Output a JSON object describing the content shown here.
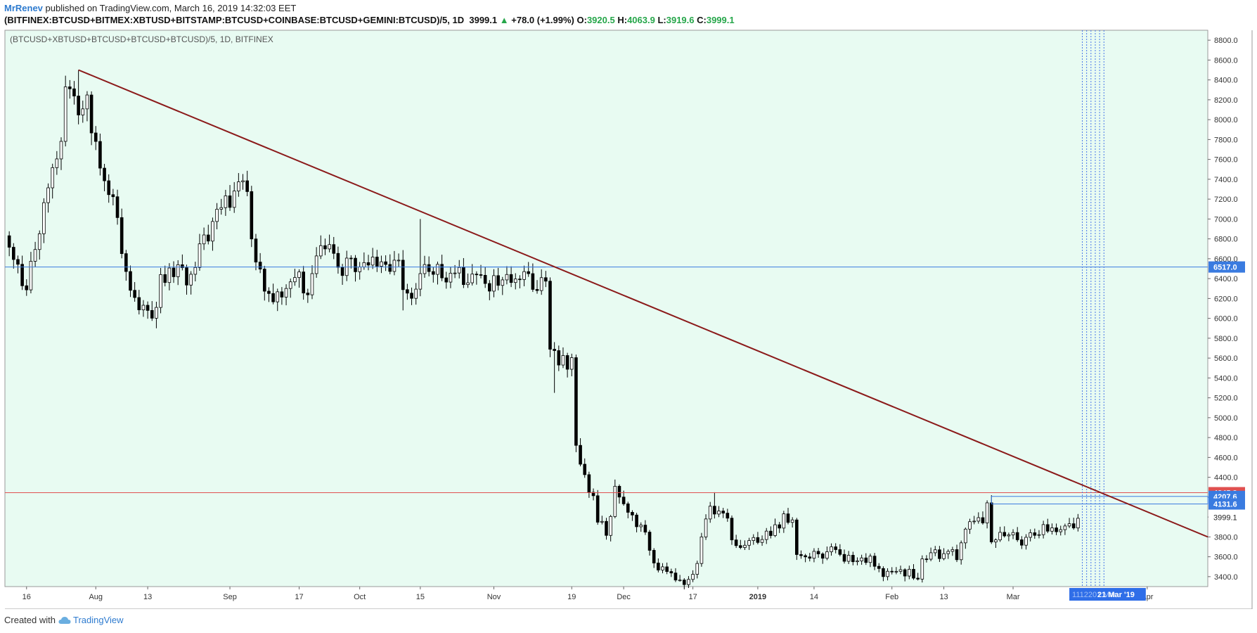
{
  "header": {
    "author": "MrRenev",
    "published": "published on TradingView.com, March 16, 2019 14:32:03 EET",
    "symbol": "(BITFINEX:BTCUSD+BITMEX:XBTUSD+BITSTAMP:BTCUSD+COINBASE:BTCUSD+GEMINI:BTCUSD)/5, 1D",
    "last": "3999.1",
    "up_arrow": "▲",
    "change": "+78.0 (+1.99%)",
    "o_label": "O:",
    "o_value": "3920.5",
    "h_label": "H:",
    "h_value": "4063.9",
    "l_label": "L:",
    "l_value": "3919.6",
    "c_label": "C:",
    "c_value": "3999.1"
  },
  "footer": {
    "created_with": "Created with",
    "brand": "TradingView",
    "logo_icon": "tradingview-cloud-icon"
  },
  "colors": {
    "background": "#e8fbf2",
    "bull": "#ffffff",
    "bear": "#000000",
    "trendline": "#8b1a1a",
    "support": "#e05050",
    "resistance": "#3a7be0"
  },
  "chart_data": {
    "type": "candlestick",
    "title": "(BTCUSD+XBTUSD+BTCUSD+BTCUSD+BTCUSD)/5, 1D, BITFINEX",
    "ylim": [
      3300,
      8900
    ],
    "yticks": [
      3400,
      3600,
      3800,
      4000,
      4200,
      4400,
      4600,
      4800,
      5000,
      5200,
      5400,
      5600,
      5800,
      6000,
      6200,
      6400,
      6600,
      6800,
      7000,
      7200,
      7400,
      7600,
      7800,
      8000,
      8200,
      8400,
      8600,
      8800
    ],
    "xlim": [
      "2018-07-11",
      "2019-04-15"
    ],
    "xticks": [
      {
        "date": "2018-07-16",
        "label": "16",
        "bold": false
      },
      {
        "date": "2018-08-01",
        "label": "Aug",
        "bold": false
      },
      {
        "date": "2018-08-13",
        "label": "13",
        "bold": false
      },
      {
        "date": "2018-09-01",
        "label": "Sep",
        "bold": false
      },
      {
        "date": "2018-09-17",
        "label": "17",
        "bold": false
      },
      {
        "date": "2018-10-01",
        "label": "Oct",
        "bold": false
      },
      {
        "date": "2018-10-15",
        "label": "15",
        "bold": false
      },
      {
        "date": "2018-11-01",
        "label": "Nov",
        "bold": false
      },
      {
        "date": "2018-11-19",
        "label": "19",
        "bold": false
      },
      {
        "date": "2018-12-01",
        "label": "Dec",
        "bold": false
      },
      {
        "date": "2018-12-17",
        "label": "17",
        "bold": false
      },
      {
        "date": "2019-01-01",
        "label": "2019",
        "bold": true
      },
      {
        "date": "2019-01-14",
        "label": "14",
        "bold": false
      },
      {
        "date": "2019-02-01",
        "label": "Feb",
        "bold": false
      },
      {
        "date": "2019-02-13",
        "label": "13",
        "bold": false
      },
      {
        "date": "2019-03-01",
        "label": "Mar",
        "bold": false
      },
      {
        "date": "2019-04-01",
        "label": "Apr",
        "bold": false
      }
    ],
    "anchors": [
      [
        "2018-07-11",
        6750
      ],
      [
        "2018-07-16",
        6280
      ],
      [
        "2018-07-18",
        6700
      ],
      [
        "2018-07-21",
        7420
      ],
      [
        "2018-07-24",
        7720
      ],
      [
        "2018-07-25",
        8350
      ],
      [
        "2018-07-27",
        8150
      ],
      [
        "2018-07-30",
        8200
      ],
      [
        "2018-08-01",
        7700
      ],
      [
        "2018-08-04",
        7300
      ],
      [
        "2018-08-06",
        6950
      ],
      [
        "2018-08-08",
        6500
      ],
      [
        "2018-08-10",
        6200
      ],
      [
        "2018-08-14",
        6050
      ],
      [
        "2018-08-16",
        6350
      ],
      [
        "2018-08-18",
        6550
      ],
      [
        "2018-08-22",
        6380
      ],
      [
        "2018-08-25",
        6700
      ],
      [
        "2018-08-29",
        7050
      ],
      [
        "2018-09-03",
        7280
      ],
      [
        "2018-09-05",
        7350
      ],
      [
        "2018-09-06",
        6700
      ],
      [
        "2018-09-09",
        6300
      ],
      [
        "2018-09-12",
        6200
      ],
      [
        "2018-09-16",
        6450
      ],
      [
        "2018-09-19",
        6300
      ],
      [
        "2018-09-21",
        6650
      ],
      [
        "2018-09-24",
        6650
      ],
      [
        "2018-09-27",
        6500
      ],
      [
        "2018-10-02",
        6550
      ],
      [
        "2018-10-06",
        6580
      ],
      [
        "2018-10-10",
        6550
      ],
      [
        "2018-10-11",
        6250
      ],
      [
        "2018-10-14",
        6220
      ],
      [
        "2018-10-15",
        6500
      ],
      [
        "2018-10-20",
        6450
      ],
      [
        "2018-10-27",
        6420
      ],
      [
        "2018-10-30",
        6320
      ],
      [
        "2018-11-03",
        6380
      ],
      [
        "2018-11-07",
        6470
      ],
      [
        "2018-11-10",
        6370
      ],
      [
        "2018-11-13",
        6330
      ],
      [
        "2018-11-14",
        5650
      ],
      [
        "2018-11-17",
        5550
      ],
      [
        "2018-11-19",
        5580
      ],
      [
        "2018-11-20",
        4720
      ],
      [
        "2018-11-21",
        4480
      ],
      [
        "2018-11-24",
        4200
      ],
      [
        "2018-11-25",
        3950
      ],
      [
        "2018-11-27",
        3850
      ],
      [
        "2018-11-29",
        4250
      ],
      [
        "2018-12-01",
        4150
      ],
      [
        "2018-12-04",
        3950
      ],
      [
        "2018-12-06",
        3800
      ],
      [
        "2018-12-08",
        3500
      ],
      [
        "2018-12-11",
        3450
      ],
      [
        "2018-12-14",
        3400
      ],
      [
        "2018-12-15",
        3300
      ],
      [
        "2018-12-18",
        3500
      ],
      [
        "2018-12-19",
        3750
      ],
      [
        "2018-12-21",
        4100
      ],
      [
        "2018-12-24",
        4050
      ],
      [
        "2018-12-27",
        3700
      ],
      [
        "2018-12-31",
        3750
      ],
      [
        "2019-01-04",
        3820
      ],
      [
        "2019-01-07",
        4000
      ],
      [
        "2019-01-09",
        4000
      ],
      [
        "2019-01-10",
        3650
      ],
      [
        "2019-01-14",
        3610
      ],
      [
        "2019-01-18",
        3650
      ],
      [
        "2019-01-21",
        3600
      ],
      [
        "2019-01-27",
        3560
      ],
      [
        "2019-01-30",
        3450
      ],
      [
        "2019-02-03",
        3450
      ],
      [
        "2019-02-06",
        3420
      ],
      [
        "2019-02-07",
        3400
      ],
      [
        "2019-02-08",
        3630
      ],
      [
        "2019-02-12",
        3620
      ],
      [
        "2019-02-16",
        3620
      ],
      [
        "2019-02-18",
        3900
      ],
      [
        "2019-02-22",
        3950
      ],
      [
        "2019-02-23",
        4130
      ],
      [
        "2019-02-24",
        3780
      ],
      [
        "2019-02-28",
        3820
      ],
      [
        "2019-03-04",
        3750
      ],
      [
        "2019-03-07",
        3870
      ],
      [
        "2019-03-10",
        3900
      ],
      [
        "2019-03-13",
        3880
      ],
      [
        "2019-03-15",
        3920
      ],
      [
        "2019-03-16",
        3999
      ]
    ],
    "spikes": [
      {
        "date": "2018-07-28",
        "high": 8500
      },
      {
        "date": "2018-10-15",
        "high": 7000
      },
      {
        "date": "2018-10-11",
        "low": 6080
      },
      {
        "date": "2018-08-15",
        "low": 5900
      },
      {
        "date": "2018-11-15",
        "low": 5250
      },
      {
        "date": "2018-12-22",
        "high": 4250
      },
      {
        "date": "2019-02-24",
        "high": 4220
      }
    ],
    "trendline": {
      "start": [
        "2018-07-28",
        8500
      ],
      "end": [
        "2019-04-15",
        3800
      ]
    },
    "hlines": [
      {
        "value": 6517.0,
        "label": "6517.0",
        "color": "#3a7be0"
      },
      {
        "value": 4245.3,
        "label": "4245.3",
        "color": "#e05050"
      }
    ],
    "boxes": [
      {
        "x0": "2019-02-24",
        "y0": 4131.6,
        "x1": "2019-04-15",
        "y1": 4207.6,
        "label_top": "4207.6",
        "label_bottom": "4131.6",
        "color": "#3a7be0"
      }
    ],
    "hsegments": [
      {
        "x0": "2018-10-15",
        "x1": "2018-11-13",
        "value": 6517.0,
        "color": "#3a7be0"
      }
    ],
    "vlines": {
      "dates": [
        "2019-03-17",
        "2019-03-18",
        "2019-03-19",
        "2019-03-20",
        "2019-03-21",
        "2019-03-22"
      ],
      "color": "#4a78e8"
    },
    "last_price": {
      "value": 3999.1,
      "label": "3999.1"
    },
    "date_marker": {
      "label": "21 Mar '19",
      "faded_label": "1112201 Mar"
    }
  }
}
